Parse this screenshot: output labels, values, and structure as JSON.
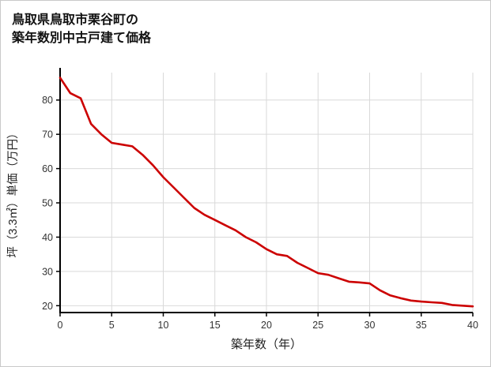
{
  "page": {
    "title_line1": "鳥取県鳥取市栗谷町の",
    "title_line2": "築年数別中古戸建て価格"
  },
  "chart_data": {
    "type": "line",
    "title": "鳥取県鳥取市栗谷町の築年数別中古戸建て価格",
    "xlabel": "築年数（年）",
    "ylabel": "坪（3.3㎡）単価（万円）",
    "x": [
      0,
      1,
      2,
      3,
      4,
      5,
      6,
      7,
      8,
      9,
      10,
      11,
      12,
      13,
      14,
      15,
      16,
      17,
      18,
      19,
      20,
      21,
      22,
      23,
      24,
      25,
      26,
      27,
      28,
      29,
      30,
      31,
      32,
      33,
      34,
      35,
      36,
      37,
      38,
      39,
      40
    ],
    "series": [
      {
        "name": "坪単価（万円）",
        "color": "#cc0000",
        "values": [
          86.5,
          82,
          80.5,
          73,
          70,
          67.5,
          67,
          66.5,
          64,
          61,
          57.5,
          54.5,
          51.5,
          48.5,
          46.5,
          45,
          43.5,
          42,
          40,
          38.5,
          36.5,
          35,
          34.5,
          32.5,
          31,
          29.5,
          29,
          28,
          27,
          26.8,
          26.5,
          24.5,
          23,
          22.2,
          21.5,
          21.2,
          21,
          20.8,
          20.2,
          20,
          19.8
        ]
      }
    ],
    "xlim": [
      0,
      40
    ],
    "ylim": [
      18,
      88
    ],
    "xticks": [
      0,
      5,
      10,
      15,
      20,
      25,
      30,
      35,
      40
    ],
    "yticks": [
      20,
      30,
      40,
      50,
      60,
      70,
      80
    ],
    "grid": true,
    "legend": "none",
    "colors": {
      "line": "#cc0000",
      "grid": "#d9d9d9",
      "axis": "#000000",
      "tick_label": "#333333",
      "axis_label": "#222222"
    }
  }
}
